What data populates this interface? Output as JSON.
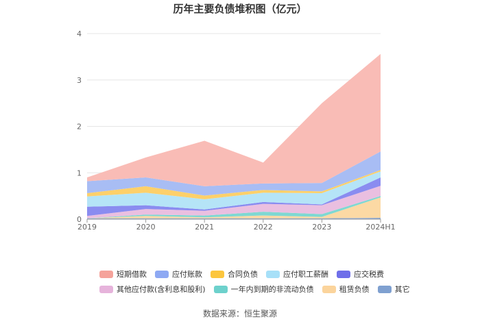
{
  "chart_data": {
    "type": "area",
    "stacked": true,
    "title": "历年主要负债堆积图（亿元）",
    "categories": [
      "2019",
      "2020",
      "2021",
      "2022",
      "2023",
      "2024H1"
    ],
    "ylim": [
      0,
      4
    ],
    "yticks": [
      "0",
      "1",
      "2",
      "3",
      "4"
    ],
    "grid": true,
    "legend_position": "bottom",
    "series": [
      {
        "name": "其它",
        "color": "#8aa9d6",
        "values": [
          0.02,
          0.02,
          0.02,
          0.02,
          0.02,
          0.03
        ]
      },
      {
        "name": "租赁负债",
        "color": "#fcd9a4",
        "values": [
          0.0,
          0.05,
          0.02,
          0.06,
          0.03,
          0.44
        ]
      },
      {
        "name": "一年内到期的非流动负债",
        "color": "#7fd8d2",
        "values": [
          0.0,
          0.03,
          0.04,
          0.08,
          0.06,
          0.03
        ]
      },
      {
        "name": "其他应付款(含利息和股利)",
        "color": "#eabfe0",
        "values": [
          0.05,
          0.12,
          0.1,
          0.17,
          0.19,
          0.22
        ]
      },
      {
        "name": "应交税费",
        "color": "#8a8cf0",
        "values": [
          0.2,
          0.08,
          0.03,
          0.04,
          0.02,
          0.18
        ]
      },
      {
        "name": "应付职工薪酬",
        "color": "#b5e4f7",
        "values": [
          0.22,
          0.27,
          0.22,
          0.2,
          0.24,
          0.13
        ]
      },
      {
        "name": "合同负债",
        "color": "#fdd06a",
        "values": [
          0.07,
          0.14,
          0.08,
          0.06,
          0.04,
          0.03
        ]
      },
      {
        "name": "应付账款",
        "color": "#a8bdf4",
        "values": [
          0.26,
          0.19,
          0.2,
          0.14,
          0.18,
          0.4
        ]
      },
      {
        "name": "短期借款",
        "color": "#f9bcb6",
        "values": [
          0.08,
          0.43,
          0.98,
          0.45,
          1.72,
          2.1
        ]
      }
    ]
  },
  "legend": {
    "row1": [
      {
        "label": "短期借款",
        "color": "#f5a39b"
      },
      {
        "label": "应付账款",
        "color": "#8ea9f3"
      },
      {
        "label": "合同负债",
        "color": "#fcc63e"
      },
      {
        "label": "应付职工薪酬",
        "color": "#a7e0f8"
      },
      {
        "label": "应交税费",
        "color": "#6f6fe9"
      }
    ],
    "row2": [
      {
        "label": "其他应付款(含利息和股利)",
        "color": "#e6b3db"
      },
      {
        "label": "一年内到期的非流动负债",
        "color": "#6dd1cc"
      },
      {
        "label": "租赁负债",
        "color": "#fbd49c"
      },
      {
        "label": "其它",
        "color": "#7fa0d0"
      }
    ]
  },
  "source": "数据来源：恒生聚源"
}
